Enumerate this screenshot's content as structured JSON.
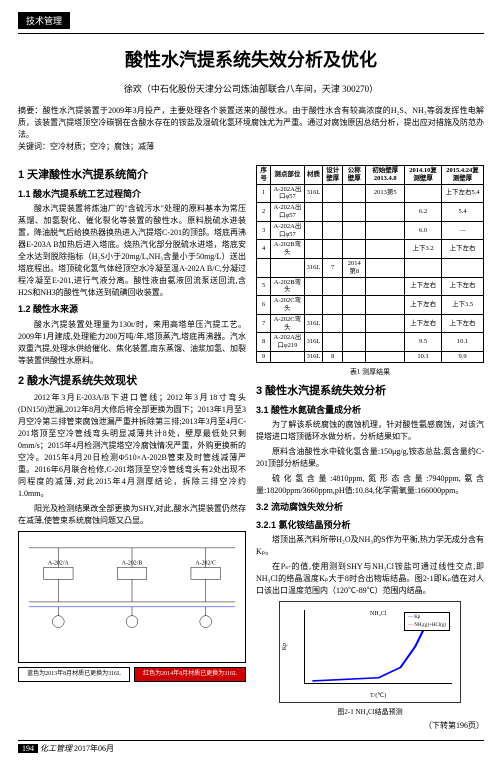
{
  "header": {
    "tab": "技术管理"
  },
  "article": {
    "title": "酸性水汽提系统失效分析及优化",
    "author": "徐欢（中石化股份天津分公司炼油部联合八车间，天津 300270）"
  },
  "abstract": {
    "label": "摘要：",
    "text": "酸性水汽提装置于2009年3月投产，主要处理各个装置送来的酸性水。由于酸性水含有较高浓度的H₂S、NH₃等弱发挥性电解质，该装置汽提塔顶空冷碳钢在含酸水存在的铵盐及湿硫化氢环境腐蚀尤为严重。通过对腐蚀原因总结分析，提出应对措施及防范办法。",
    "keywords_label": "关键词：",
    "keywords": "空冷材质；空冷；腐蚀；减薄"
  },
  "left": {
    "s1": "1 天津酸性水汽提系统简介",
    "s1_1": "1.1 酸水汽提系统工艺过程简介",
    "p1_1": "酸水汽提装置将炼油厂的\"含硫污水\"处理的原料基本为常压蒸馏、加氢裂化、催化裂化等装置的酸性水。原料脱硫水进装置，降油脱气后给换热器换热进入汽提塔C-201的顶部。塔底再沸器E-203A B加热后进入塔底。烧热汽化部分脱硫水进塔，塔底安全水达到脱除指标（H₂S小于20mg/L,NH₃含量小于50mg/L）送出塔底程出。塔顶硫化氢气体经顶空水冷凝至温A-202A B/C,分凝过程冷凝至E-201,进行气液分离。酸性液由氨液回流泵送回流,含H2S和NH3的酸性气体送到硫磺回收装置。",
    "s1_2": "1.2 酸性水来源",
    "p1_2": "酸水汽提装置处理量为130t/时，来用高塔单压汽提工艺。2009年1月建成,处理能力200万吨/年,塔顶蒸汽,塔底再沸器。汽水双重汽提,处理水供给催化、焦化装置,南东蒸馏、油浆加氢、加裂等装置供酸性水原料。",
    "s2": "2 酸水汽提系统失效现状",
    "p2": "2012年3月E-203A/B下进口管线；2012年3月18寸弯头(DN150)泄漏,2012年8月大修后将全部更换为圆下；2013年1月至3月空冷第三排管束腐蚀泄漏严重并拆除第三排;2013年3月至4月C-201塔顶至空冷管线弯头明显减薄共计8处，壁厚最低处只剩0mm/s；2015年4月检测汽提塔空冷腐蚀情况严重，外购更换新的空冷。2015年4月20日检测Φ510×A-202B管束及时管线减薄严重。2016年6月联合检修,C-201塔顶至空冷管线弯头有2处出现不同程度的减薄,对此2015年4月测厚结论，拆除三排空冷约1.0mm。",
    "p2_2": "阳光及检测结果改全部更换为SHY,对此,酸水汽提装置仍然存在减薄,使管束系统腐蚀问题又凸显。"
  },
  "right": {
    "table_caption": "表1 测厚结果",
    "s3": "3 酸性水汽提系统失效分析",
    "s3_1": "3.1 酸性水氮硫含量成分析",
    "p3_1": "为了解该系统腐蚀的腐蚀机理，针对酸性氨感腐蚀，对该汽提塔进口塔顶循环水做分析，分析结果如下。",
    "p3_2": "原料含油酸性水中硫化氢含量:150μg/g,铵态总盐,氮含量约C-201顶部分析结果。",
    "p3_3": "硫化氢含量:4810ppm,氮形态含量:7940ppm,氨含量:18200ppm/3660ppm,pH值:10.84,化学需氧量:166000ppm。",
    "s3_2": "3.2 流动腐蚀失效分析",
    "s3_2_1": "3.2.1 氯化铵结晶预分析",
    "p3_2_1": "塔顶出蒸汽料所带H₂O及NH₃的S作为平衡,热力学无成分含有Kₚ。",
    "p3_2_2": "在Pₛ-的值,使用测到SHY与NH₃Cl铵盐可通过线性交点,即NH₃Cl的络晶温度Kₚ大于8时合出物垢结晶。图2-1即Kₚ值在对人口该出口温度范围内（120℃-89℃）范围内结晶。",
    "fig_caption": "图2-1 NH₄Cl结晶预测",
    "continue": "（下转第196页）"
  },
  "table": {
    "headers": [
      "序号",
      "测点部位",
      "材质",
      "设计壁厚",
      "公称壁厚",
      "初始壁厚2013.4.8",
      "2014.10复测壁厚",
      "2015.4.24复测壁厚"
    ],
    "rows": [
      [
        "1",
        "A-202A出口φ57",
        "316L",
        "",
        "",
        "2013第5",
        "",
        "上下左右5.4"
      ],
      [
        "2",
        "A-202A出口φ57",
        "",
        "",
        "",
        "",
        "6.2",
        "5.4"
      ],
      [
        "3",
        "A-202A出口φ57",
        "",
        "",
        "",
        "",
        "6.0",
        "—"
      ],
      [
        "4",
        "A-202B弯头",
        "",
        "",
        "",
        "",
        "上下3.2",
        "上下左右"
      ],
      [
        "",
        "",
        "316L",
        "7",
        "2014第8",
        "",
        "",
        ""
      ],
      [
        "5",
        "A-202B弯头",
        "",
        "",
        "",
        "",
        "上下左右",
        "上下左右"
      ],
      [
        "6",
        "A-202C弯头",
        "",
        "",
        "",
        "",
        "上下左右",
        "上下3.5"
      ],
      [
        "7",
        "A-202C弯头",
        "316L",
        "",
        "",
        "",
        "上下左右",
        "上下左右"
      ],
      [
        "8",
        "A-202A出口φ219",
        "316L",
        "",
        "",
        "",
        "9.5",
        "10.1"
      ],
      [
        "9",
        "",
        "316L",
        "8",
        "",
        "",
        "10.1",
        "9.9"
      ]
    ]
  },
  "chart": {
    "title": "NH₄Cl",
    "xlabel": "T/(℃)",
    "ylabel": "Kp",
    "legend": [
      "Kp",
      "NH₃(g)+HCl(g)"
    ],
    "x_range": [
      0,
      200
    ],
    "y_range": [
      0,
      20
    ],
    "curve_color": "#0000ff",
    "legend_color": "#ff0000",
    "background": "#ffffff"
  },
  "diagram": {
    "labels": [
      "A-202/A",
      "A-202/B",
      "A-202/C"
    ],
    "note1": "蓝色为2013年8月材质已更换为316L",
    "note2": "红色为2014年8月材质已更换为316L"
  },
  "footer": {
    "page": "194",
    "journal": "化工管理",
    "date": "2017年06月"
  }
}
